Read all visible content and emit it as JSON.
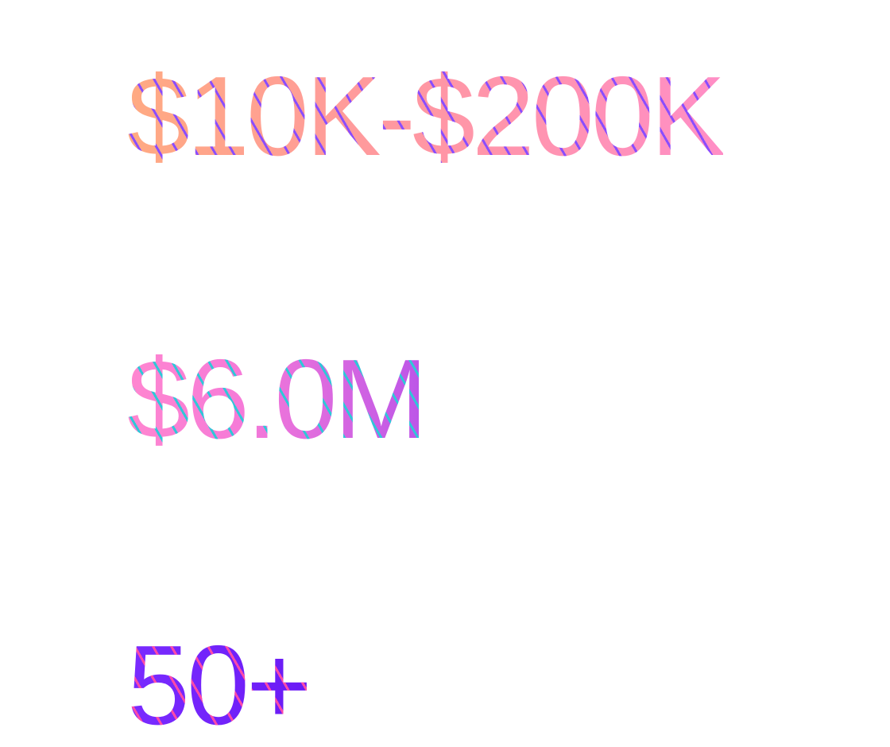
{
  "stats": [
    {
      "value": "$10K-$200K"
    },
    {
      "value": "$6.0M"
    },
    {
      "value": "50+"
    }
  ],
  "colors": {
    "stat_1_gradient": [
      "#ffaa82",
      "#ff98a0",
      "#ff8ec6"
    ],
    "stat_1_stripe": "#8a4dff",
    "stat_2_gradient": [
      "#ff86d0",
      "#f57ad8",
      "#bb55e8"
    ],
    "stat_2_stripe": "#2ec8d8",
    "stat_3_gradient": [
      "#7a2cff",
      "#6a1af5"
    ],
    "stat_3_stripe": "#ff4aa8",
    "background": "#ffffff"
  }
}
